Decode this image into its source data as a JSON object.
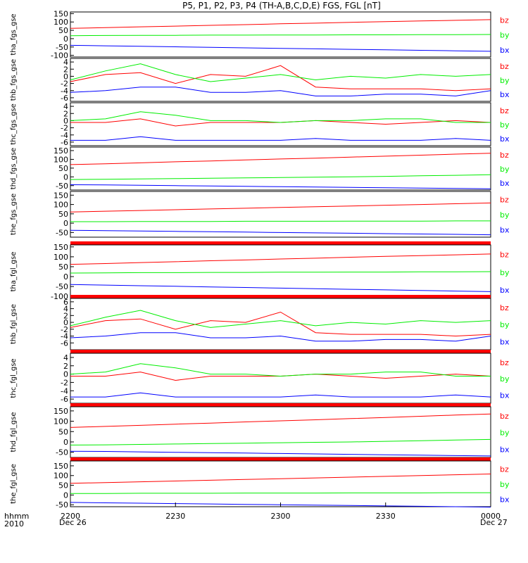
{
  "title": "P5, P1, P2, P3, P4 (TH-A,B,C,D,E) FGS, FGL [nT]",
  "time_axis": {
    "unit_label": "hhmm",
    "year_label": "2010",
    "start_date_label": "Dec 26",
    "end_date_label": "Dec 27",
    "ticks": [
      "2200",
      "2230",
      "2300",
      "2330",
      "0000"
    ]
  },
  "components": [
    "bz",
    "by",
    "bx"
  ],
  "colors": {
    "bz": "#ff0000",
    "by": "#00ee00",
    "bx": "#0000ff",
    "status_bar": "#ff0000",
    "axis": "#000000"
  },
  "chart_data": {
    "type": "line",
    "x": [
      "22:00",
      "22:10",
      "22:20",
      "22:30",
      "22:40",
      "22:50",
      "23:00",
      "23:10",
      "23:20",
      "23:30",
      "23:40",
      "23:50",
      "00:00"
    ],
    "panels": [
      {
        "ylabel": "tha_fgs_gse",
        "ylim": [
          -110,
          160
        ],
        "yticks": [
          "150",
          "100",
          "50",
          "0",
          "-50",
          "-100"
        ],
        "series": [
          {
            "name": "bz",
            "values": [
              62,
              66,
              71,
              75,
              80,
              84,
              89,
              93,
              98,
              102,
              106,
              110,
              114
            ]
          },
          {
            "name": "by",
            "values": [
              18,
              19,
              20,
              20,
              21,
              21,
              22,
              22,
              23,
              23,
              24,
              24,
              25
            ]
          },
          {
            "name": "bx",
            "values": [
              -40,
              -43,
              -46,
              -49,
              -52,
              -55,
              -58,
              -61,
              -64,
              -67,
              -70,
              -73,
              -76
            ]
          }
        ]
      },
      {
        "ylabel": "thb_fgs_gse",
        "ylim": [
          -7,
          5
        ],
        "yticks": [
          "4",
          "2",
          "0",
          "-2",
          "-4",
          "-6"
        ],
        "series": [
          {
            "name": "bz",
            "values": [
              -1.5,
              0.5,
              1.0,
              -2.0,
              0.5,
              0.0,
              3.0,
              -3.0,
              -3.5,
              -3.5,
              -3.5,
              -4.0,
              -3.5
            ]
          },
          {
            "name": "by",
            "values": [
              -1.0,
              1.5,
              3.5,
              0.5,
              -1.5,
              -0.5,
              0.5,
              -1.0,
              0.0,
              -0.5,
              0.5,
              0.0,
              0.5
            ]
          },
          {
            "name": "bx",
            "values": [
              -4.5,
              -4.0,
              -3.0,
              -3.0,
              -4.5,
              -4.5,
              -4.0,
              -5.5,
              -5.5,
              -5.0,
              -5.0,
              -5.5,
              -4.0
            ]
          }
        ]
      },
      {
        "ylabel": "thc_fgs_gse",
        "ylim": [
          -7,
          5
        ],
        "yticks": [
          "4",
          "2",
          "0",
          "-2",
          "-4",
          "-6"
        ],
        "series": [
          {
            "name": "bz",
            "values": [
              -0.5,
              -0.5,
              0.5,
              -1.5,
              -0.5,
              -0.5,
              -0.5,
              0.0,
              -0.5,
              -1.0,
              -0.5,
              0.0,
              -0.5
            ]
          },
          {
            "name": "by",
            "values": [
              0.0,
              0.5,
              2.5,
              1.5,
              0.0,
              0.0,
              -0.5,
              0.0,
              0.0,
              0.5,
              0.5,
              -0.5,
              -0.5
            ]
          },
          {
            "name": "bx",
            "values": [
              -5.5,
              -5.5,
              -4.5,
              -5.5,
              -5.5,
              -5.5,
              -5.5,
              -5.0,
              -5.5,
              -5.5,
              -5.5,
              -5.0,
              -5.5
            ]
          }
        ]
      },
      {
        "ylabel": "thd_fgs_gse",
        "ylim": [
          -75,
          170
        ],
        "yticks": [
          "150",
          "100",
          "50",
          "0",
          "-50"
        ],
        "series": [
          {
            "name": "bz",
            "values": [
              70,
              75,
              80,
              86,
              91,
              97,
              102,
              107,
              113,
              118,
              124,
              130,
              135
            ]
          },
          {
            "name": "by",
            "values": [
              -15,
              -14,
              -12,
              -10,
              -8,
              -6,
              -4,
              -2,
              0,
              3,
              6,
              9,
              12
            ]
          },
          {
            "name": "bx",
            "values": [
              -45,
              -46,
              -48,
              -50,
              -52,
              -54,
              -56,
              -58,
              -60,
              -62,
              -64,
              -66,
              -68
            ]
          }
        ]
      },
      {
        "ylabel": "the_fgs_gse",
        "ylim": [
          -75,
          170
        ],
        "yticks": [
          "150",
          "100",
          "50",
          "0",
          "-50"
        ],
        "series": [
          {
            "name": "bz",
            "values": [
              60,
              64,
              68,
              72,
              76,
              80,
              84,
              88,
              92,
              96,
              100,
              104,
              108
            ]
          },
          {
            "name": "by",
            "values": [
              8,
              8,
              9,
              9,
              9,
              10,
              10,
              10,
              11,
              11,
              11,
              12,
              12
            ]
          },
          {
            "name": "bx",
            "values": [
              -38,
              -40,
              -42,
              -44,
              -46,
              -48,
              -50,
              -52,
              -54,
              -56,
              -58,
              -60,
              -62
            ]
          }
        ]
      },
      {
        "ylabel": "tha_fgl_gse",
        "ylim": [
          -110,
          160
        ],
        "yticks": [
          "150",
          "100",
          "50",
          "0",
          "-50",
          "-100"
        ],
        "series": [
          {
            "name": "bz",
            "values": [
              62,
              66,
              71,
              75,
              80,
              84,
              89,
              93,
              98,
              102,
              106,
              110,
              114
            ]
          },
          {
            "name": "by",
            "values": [
              18,
              19,
              20,
              20,
              21,
              21,
              22,
              22,
              23,
              23,
              24,
              24,
              25
            ]
          },
          {
            "name": "bx",
            "values": [
              -40,
              -43,
              -46,
              -49,
              -52,
              -55,
              -58,
              -61,
              -64,
              -67,
              -70,
              -73,
              -76
            ]
          }
        ]
      },
      {
        "ylabel": "thb_fgl_gse",
        "ylim": [
          -8,
          7
        ],
        "yticks": [
          "6",
          "4",
          "2",
          "0",
          "-2",
          "-4",
          "-6"
        ],
        "series": [
          {
            "name": "bz",
            "values": [
              -1.5,
              0.5,
              1.0,
              -2.0,
              0.5,
              0.0,
              3.0,
              -3.0,
              -3.5,
              -3.5,
              -3.5,
              -4.0,
              -3.5
            ]
          },
          {
            "name": "by",
            "values": [
              -1.0,
              1.5,
              3.5,
              0.5,
              -1.5,
              -0.5,
              0.5,
              -1.0,
              0.0,
              -0.5,
              0.5,
              0.0,
              0.5
            ]
          },
          {
            "name": "bx",
            "values": [
              -4.5,
              -4.0,
              -3.0,
              -3.0,
              -4.5,
              -4.5,
              -4.0,
              -5.5,
              -5.5,
              -5.0,
              -5.0,
              -5.5,
              -4.0
            ]
          }
        ]
      },
      {
        "ylabel": "thc_fgl_gse",
        "ylim": [
          -7,
          5
        ],
        "yticks": [
          "4",
          "2",
          "0",
          "-2",
          "-4",
          "-6"
        ],
        "series": [
          {
            "name": "bz",
            "values": [
              -0.5,
              -0.5,
              0.5,
              -1.5,
              -0.5,
              -0.5,
              -0.5,
              0.0,
              -0.5,
              -1.0,
              -0.5,
              0.0,
              -0.5
            ]
          },
          {
            "name": "by",
            "values": [
              0.0,
              0.5,
              2.5,
              1.5,
              0.0,
              0.0,
              -0.5,
              0.0,
              0.0,
              0.5,
              0.5,
              -0.5,
              -0.5
            ]
          },
          {
            "name": "bx",
            "values": [
              -5.5,
              -5.5,
              -4.5,
              -5.5,
              -5.5,
              -5.5,
              -5.5,
              -5.0,
              -5.5,
              -5.5,
              -5.5,
              -5.0,
              -5.5
            ]
          }
        ]
      },
      {
        "ylabel": "thd_fgl_gse",
        "ylim": [
          -75,
          170
        ],
        "yticks": [
          "150",
          "100",
          "50",
          "0",
          "-50"
        ],
        "series": [
          {
            "name": "bz",
            "values": [
              70,
              75,
              80,
              86,
              91,
              97,
              102,
              107,
              113,
              118,
              124,
              130,
              135
            ]
          },
          {
            "name": "by",
            "values": [
              -15,
              -14,
              -12,
              -10,
              -8,
              -6,
              -4,
              -2,
              0,
              3,
              6,
              9,
              12
            ]
          },
          {
            "name": "bx",
            "values": [
              -45,
              -46,
              -48,
              -50,
              -52,
              -54,
              -56,
              -58,
              -60,
              -62,
              -64,
              -66,
              -68
            ]
          }
        ]
      },
      {
        "ylabel": "the_fgl_gse",
        "ylim": [
          -60,
          175
        ],
        "yticks": [
          "150",
          "100",
          "50",
          "0",
          "-50"
        ],
        "series": [
          {
            "name": "bz",
            "values": [
              60,
              64,
              68,
              72,
              76,
              80,
              84,
              88,
              92,
              96,
              100,
              104,
              108
            ]
          },
          {
            "name": "by",
            "values": [
              8,
              8,
              9,
              9,
              9,
              10,
              10,
              10,
              11,
              11,
              11,
              12,
              12
            ]
          },
          {
            "name": "bx",
            "values": [
              -38,
              -40,
              -42,
              -44,
              -46,
              -48,
              -50,
              -52,
              -54,
              -56,
              -58,
              -60,
              -62
            ]
          }
        ]
      }
    ]
  }
}
